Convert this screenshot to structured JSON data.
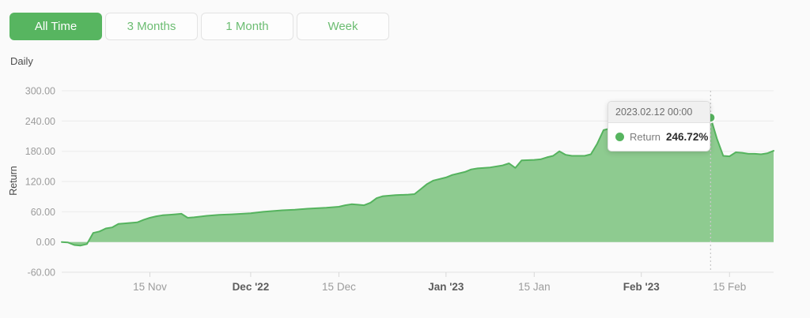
{
  "toolbar": {
    "active_index": 0,
    "buttons": [
      {
        "label": "All Time"
      },
      {
        "label": "3 Months"
      },
      {
        "label": "1 Month"
      },
      {
        "label": "Week"
      }
    ]
  },
  "frequency_label": "Daily",
  "tooltip": {
    "title": "2023.02.12 00:00",
    "series_label": "Return",
    "value": "246.72%"
  },
  "colors": {
    "accent_green": "#57b560",
    "area_fill": "#8ecb90",
    "line_green": "#55b35e",
    "grid_line": "#ebebeb",
    "axis_line": "#e3e3e3",
    "tick_mark": "#d8d8d8",
    "tick_label": "#9c9c9c",
    "tick_label_bold": "#5c5c5c",
    "cursor_line": "#c9c9c9",
    "marker_stroke": "#ffffff"
  },
  "chart_data": {
    "type": "area",
    "title": "",
    "xlabel": "",
    "ylabel": "Return",
    "value_unit": "%",
    "ylim": [
      -60,
      300
    ],
    "x_range": [
      "2022-11-01",
      "2023-02-22"
    ],
    "grid": true,
    "legend_position": "none",
    "y_ticks": [
      {
        "value": 300,
        "label": "300.00"
      },
      {
        "value": 240,
        "label": "240.00"
      },
      {
        "value": 180,
        "label": "180.00"
      },
      {
        "value": 120,
        "label": "120.00"
      },
      {
        "value": 60,
        "label": "60.00"
      },
      {
        "value": 0,
        "label": "0.00"
      },
      {
        "value": -60,
        "label": "-60.00"
      }
    ],
    "x_ticks": [
      {
        "date": "2022-11-15",
        "label": "15 Nov",
        "bold": false
      },
      {
        "date": "2022-12-01",
        "label": "Dec '22",
        "bold": true
      },
      {
        "date": "2022-12-15",
        "label": "15 Dec",
        "bold": false
      },
      {
        "date": "2023-01-01",
        "label": "Jan '23",
        "bold": true
      },
      {
        "date": "2023-01-15",
        "label": "15 Jan",
        "bold": false
      },
      {
        "date": "2023-02-01",
        "label": "Feb '23",
        "bold": true
      },
      {
        "date": "2023-02-15",
        "label": "15 Feb",
        "bold": false
      }
    ],
    "series": [
      {
        "name": "Return",
        "points": [
          [
            "2022-11-01",
            0
          ],
          [
            "2022-11-02",
            -1
          ],
          [
            "2022-11-03",
            -6
          ],
          [
            "2022-11-04",
            -7
          ],
          [
            "2022-11-05",
            -4
          ],
          [
            "2022-11-06",
            18
          ],
          [
            "2022-11-07",
            21
          ],
          [
            "2022-11-08",
            27
          ],
          [
            "2022-11-09",
            29
          ],
          [
            "2022-11-10",
            36
          ],
          [
            "2022-11-11",
            37
          ],
          [
            "2022-11-13",
            39
          ],
          [
            "2022-11-14",
            44
          ],
          [
            "2022-11-15",
            48
          ],
          [
            "2022-11-16",
            51
          ],
          [
            "2022-11-17",
            53
          ],
          [
            "2022-11-18",
            54
          ],
          [
            "2022-11-19",
            55
          ],
          [
            "2022-11-20",
            56
          ],
          [
            "2022-11-21",
            48
          ],
          [
            "2022-11-22",
            49
          ],
          [
            "2022-11-24",
            52
          ],
          [
            "2022-11-26",
            54
          ],
          [
            "2022-11-28",
            55
          ],
          [
            "2022-12-01",
            57
          ],
          [
            "2022-12-03",
            60
          ],
          [
            "2022-12-06",
            63
          ],
          [
            "2022-12-08",
            64
          ],
          [
            "2022-12-10",
            66
          ],
          [
            "2022-12-13",
            68
          ],
          [
            "2022-12-15",
            70
          ],
          [
            "2022-12-16",
            73
          ],
          [
            "2022-12-17",
            75
          ],
          [
            "2022-12-18",
            74
          ],
          [
            "2022-12-19",
            73
          ],
          [
            "2022-12-20",
            78
          ],
          [
            "2022-12-21",
            87
          ],
          [
            "2022-12-22",
            91
          ],
          [
            "2022-12-24",
            93
          ],
          [
            "2022-12-26",
            94
          ],
          [
            "2022-12-27",
            95
          ],
          [
            "2022-12-28",
            105
          ],
          [
            "2022-12-29",
            115
          ],
          [
            "2022-12-30",
            122
          ],
          [
            "2023-01-01",
            128
          ],
          [
            "2023-01-02",
            133
          ],
          [
            "2023-01-04",
            139
          ],
          [
            "2023-01-05",
            144
          ],
          [
            "2023-01-06",
            146
          ],
          [
            "2023-01-08",
            148
          ],
          [
            "2023-01-10",
            152
          ],
          [
            "2023-01-11",
            156
          ],
          [
            "2023-01-12",
            147
          ],
          [
            "2023-01-13",
            162
          ],
          [
            "2023-01-15",
            163
          ],
          [
            "2023-01-16",
            164
          ],
          [
            "2023-01-17",
            168
          ],
          [
            "2023-01-18",
            171
          ],
          [
            "2023-01-19",
            180
          ],
          [
            "2023-01-20",
            173
          ],
          [
            "2023-01-21",
            171
          ],
          [
            "2023-01-23",
            171
          ],
          [
            "2023-01-24",
            174
          ],
          [
            "2023-01-25",
            195
          ],
          [
            "2023-01-26",
            222
          ],
          [
            "2023-01-28",
            228
          ],
          [
            "2023-01-30",
            232
          ],
          [
            "2023-02-02",
            235
          ],
          [
            "2023-02-05",
            238
          ],
          [
            "2023-02-08",
            241
          ],
          [
            "2023-02-10",
            243
          ],
          [
            "2023-02-12",
            246.72
          ],
          [
            "2023-02-13",
            205
          ],
          [
            "2023-02-14",
            171
          ],
          [
            "2023-02-15",
            170
          ],
          [
            "2023-02-16",
            178
          ],
          [
            "2023-02-17",
            177
          ],
          [
            "2023-02-18",
            175
          ],
          [
            "2023-02-19",
            175
          ],
          [
            "2023-02-20",
            174
          ],
          [
            "2023-02-21",
            176
          ],
          [
            "2023-02-22",
            181
          ]
        ]
      }
    ],
    "marker": {
      "date": "2023-02-12",
      "value": 246.72
    }
  }
}
